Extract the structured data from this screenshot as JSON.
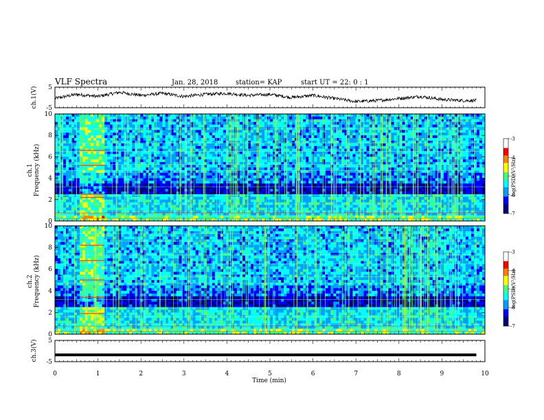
{
  "header": {
    "title": "VLF Spectra",
    "date": "Jan. 28, 2018",
    "station": "station= KAP",
    "start": "start  UT =  22: 0  : 1"
  },
  "chart_data": [
    {
      "type": "line",
      "panel": "ch1-voltage",
      "ylabel": "ch.1(V)",
      "ylim": [
        -5,
        5
      ],
      "yticks": [
        "5",
        "-5"
      ],
      "xlim": [
        0,
        10
      ],
      "series": [
        {
          "x": [
            0,
            0.5,
            1,
            1.5,
            2,
            2.5,
            3,
            3.5,
            4,
            4.5,
            5,
            5.5,
            6,
            6.5,
            7,
            7.5,
            8,
            8.5,
            9,
            9.5,
            9.8
          ],
          "values": [
            -0.5,
            1.5,
            0.5,
            2.5,
            1,
            2,
            0.5,
            1.5,
            2,
            1,
            1.5,
            0,
            1,
            -0.5,
            -2,
            -1.5,
            -0.5,
            0.5,
            -1,
            -1.5,
            -1.5
          ]
        }
      ]
    },
    {
      "type": "heatmap",
      "panel": "ch1-spectrogram",
      "ylabel": "ch.1\nFrequency (kHz)",
      "ylim": [
        0,
        10
      ],
      "yticks": [
        "0",
        "2",
        "4",
        "6",
        "8",
        "10"
      ],
      "xlim": [
        0,
        10
      ],
      "colorbar": {
        "label": "log(PSD)(V²/Hz)",
        "range": [
          -7,
          -3
        ],
        "ticks": [
          "-3",
          "-4",
          "-5",
          "-6",
          "-7"
        ]
      }
    },
    {
      "type": "heatmap",
      "panel": "ch2-spectrogram",
      "ylabel": "ch.2\nFrequency (kHz)",
      "ylim": [
        0,
        10
      ],
      "yticks": [
        "0",
        "2",
        "4",
        "6",
        "8",
        "10"
      ],
      "xlim": [
        0,
        10
      ],
      "colorbar": {
        "label": "log(PSD)(V²/Hz)",
        "range": [
          -7,
          -3
        ],
        "ticks": [
          "-3",
          "-4",
          "-5",
          "-6",
          "-7"
        ]
      }
    },
    {
      "type": "line",
      "panel": "ch3-voltage",
      "ylabel": "ch.3(V)",
      "ylim": [
        -5,
        5
      ],
      "yticks": [
        "5",
        "-5"
      ],
      "xlim": [
        0,
        10
      ],
      "series": [
        {
          "x": [
            0,
            9.8
          ],
          "values": [
            -1.8,
            -1.8
          ]
        }
      ]
    }
  ],
  "xaxis": {
    "label": "Time (min)",
    "ticks": [
      "0",
      "1",
      "2",
      "3",
      "4",
      "5",
      "6",
      "7",
      "8",
      "9",
      "10"
    ]
  },
  "colors": {
    "trace": "#000000",
    "background_blue": "#00008b",
    "cmap": [
      "#000080",
      "#0000ff",
      "#00a0ff",
      "#00ffff",
      "#40ff80",
      "#ffff00",
      "#ff8000",
      "#ff0000",
      "#ffffff"
    ]
  }
}
